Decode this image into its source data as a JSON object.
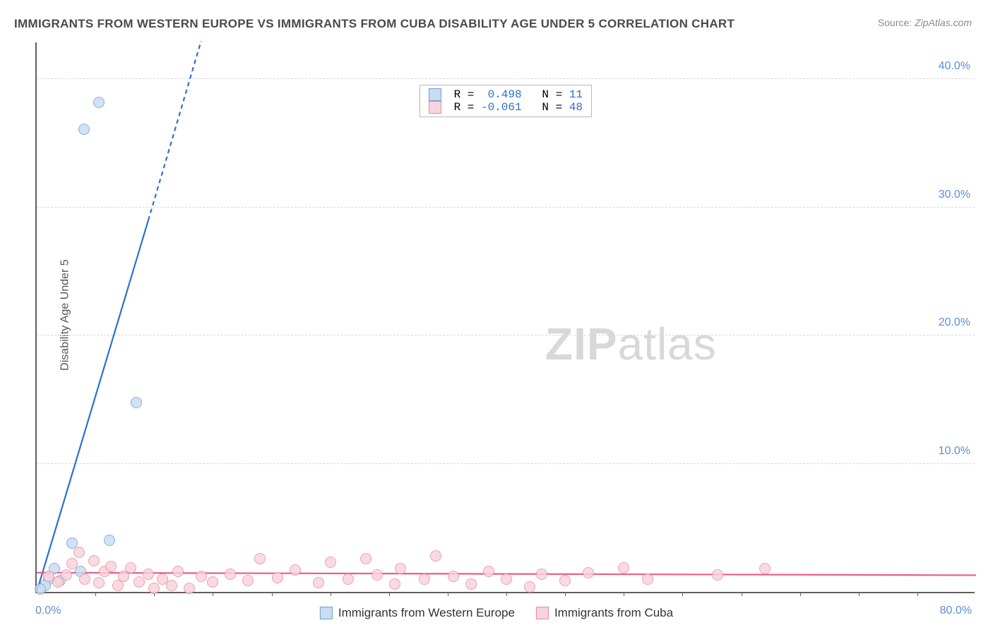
{
  "title": "IMMIGRANTS FROM WESTERN EUROPE VS IMMIGRANTS FROM CUBA DISABILITY AGE UNDER 5 CORRELATION CHART",
  "source_label": "Source:",
  "source_value": "ZipAtlas.com",
  "ylabel": "Disability Age Under 5",
  "watermark_bold": "ZIP",
  "watermark_rest": "atlas",
  "chart": {
    "type": "scatter",
    "xlim": [
      0,
      80
    ],
    "ylim": [
      0,
      43
    ],
    "x_tick_step": 5,
    "y_ticks": [
      10,
      20,
      30,
      40
    ],
    "x_origin_label": "0.0%",
    "x_end_label": "80.0%",
    "y_tick_suffix": ".0%",
    "grid_color": "#d8d8d8",
    "axis_color": "#606060",
    "tick_label_color": "#5b8fd6",
    "background_color": "#ffffff",
    "marker_radius": 8,
    "series": [
      {
        "key": "we",
        "label": "Immigrants from Western Europe",
        "fill": "#c9dcf2",
        "stroke": "#6f9fd8",
        "R": "0.498",
        "N": "11",
        "trend": {
          "x1": 0,
          "y1": 0,
          "x2_solid": 9.5,
          "y2_solid": 29,
          "x2_dash": 14,
          "y2_dash": 43,
          "stroke": "#2f6fd1",
          "width": 2.2
        },
        "points": [
          {
            "x": 5.3,
            "y": 38.2
          },
          {
            "x": 4.0,
            "y": 36.1
          },
          {
            "x": 8.5,
            "y": 14.8
          },
          {
            "x": 6.2,
            "y": 4.0
          },
          {
            "x": 3.0,
            "y": 3.8
          },
          {
            "x": 1.5,
            "y": 1.8
          },
          {
            "x": 2.0,
            "y": 0.9
          },
          {
            "x": 1.0,
            "y": 1.0
          },
          {
            "x": 0.7,
            "y": 0.5
          },
          {
            "x": 3.7,
            "y": 1.6
          },
          {
            "x": 0.3,
            "y": 0.2
          }
        ]
      },
      {
        "key": "cuba",
        "label": "Immigrants from Cuba",
        "fill": "#f9d3db",
        "stroke": "#e98ba1",
        "R": "-0.061",
        "N": "48",
        "trend": {
          "x1": 0,
          "y1": 1.5,
          "x2_solid": 80,
          "y2_solid": 1.3,
          "stroke": "#e85f8a",
          "width": 2.2
        },
        "points": [
          {
            "x": 1.0,
            "y": 1.2
          },
          {
            "x": 1.8,
            "y": 0.8
          },
          {
            "x": 2.5,
            "y": 1.3
          },
          {
            "x": 3.0,
            "y": 2.2
          },
          {
            "x": 3.6,
            "y": 3.1
          },
          {
            "x": 4.1,
            "y": 1.0
          },
          {
            "x": 4.9,
            "y": 2.4
          },
          {
            "x": 5.3,
            "y": 0.7
          },
          {
            "x": 5.8,
            "y": 1.6
          },
          {
            "x": 6.3,
            "y": 2.0
          },
          {
            "x": 6.9,
            "y": 0.5
          },
          {
            "x": 7.4,
            "y": 1.2
          },
          {
            "x": 8.0,
            "y": 1.9
          },
          {
            "x": 8.7,
            "y": 0.8
          },
          {
            "x": 9.5,
            "y": 1.4
          },
          {
            "x": 10.0,
            "y": 0.3
          },
          {
            "x": 10.7,
            "y": 1.0
          },
          {
            "x": 11.5,
            "y": 0.5
          },
          {
            "x": 12.0,
            "y": 1.6
          },
          {
            "x": 13.0,
            "y": 0.3
          },
          {
            "x": 14.0,
            "y": 1.2
          },
          {
            "x": 15.0,
            "y": 0.8
          },
          {
            "x": 16.5,
            "y": 1.4
          },
          {
            "x": 18.0,
            "y": 0.9
          },
          {
            "x": 19.0,
            "y": 2.6
          },
          {
            "x": 20.5,
            "y": 1.1
          },
          {
            "x": 22.0,
            "y": 1.7
          },
          {
            "x": 24.0,
            "y": 0.7
          },
          {
            "x": 25.0,
            "y": 2.3
          },
          {
            "x": 26.5,
            "y": 1.0
          },
          {
            "x": 28.0,
            "y": 2.6
          },
          {
            "x": 29.0,
            "y": 1.3
          },
          {
            "x": 30.5,
            "y": 0.6
          },
          {
            "x": 31.0,
            "y": 1.8
          },
          {
            "x": 33.0,
            "y": 1.0
          },
          {
            "x": 34.0,
            "y": 2.8
          },
          {
            "x": 35.5,
            "y": 1.2
          },
          {
            "x": 37.0,
            "y": 0.6
          },
          {
            "x": 38.5,
            "y": 1.6
          },
          {
            "x": 40.0,
            "y": 1.0
          },
          {
            "x": 43.0,
            "y": 1.4
          },
          {
            "x": 45.0,
            "y": 0.9
          },
          {
            "x": 47.0,
            "y": 1.5
          },
          {
            "x": 50.0,
            "y": 1.9
          },
          {
            "x": 52.0,
            "y": 1.0
          },
          {
            "x": 58.0,
            "y": 1.3
          },
          {
            "x": 62.0,
            "y": 1.8
          },
          {
            "x": 42.0,
            "y": 0.4
          }
        ]
      }
    ]
  },
  "legend_box": {
    "r_label": "R =",
    "n_label": "N ="
  }
}
